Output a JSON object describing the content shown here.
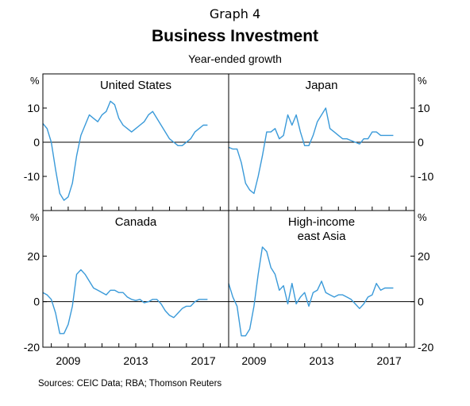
{
  "graph_label": "Graph 4",
  "title": "Business Investment",
  "subtitle": "Year-ended growth",
  "sources": "Sources:   CEIC Data; RBA; Thomson Reuters",
  "line_color": "#3a9ad9",
  "chart_data": [
    {
      "type": "line",
      "title": "United States",
      "unit": "%",
      "ylim": [
        -20,
        20
      ],
      "yticks": [
        -10,
        0,
        10
      ],
      "xlim": [
        2007.5,
        2018.5
      ],
      "xticks": [
        2009,
        2013,
        2017
      ],
      "series": [
        {
          "x": [
            2007.5,
            2007.75,
            2008,
            2008.25,
            2008.5,
            2008.75,
            2009,
            2009.25,
            2009.5,
            2009.75,
            2010,
            2010.25,
            2010.5,
            2010.75,
            2011,
            2011.25,
            2011.5,
            2011.75,
            2012,
            2012.25,
            2012.5,
            2012.75,
            2013,
            2013.25,
            2013.5,
            2013.75,
            2014,
            2014.25,
            2014.5,
            2014.75,
            2015,
            2015.25,
            2015.5,
            2015.75,
            2016,
            2016.25,
            2016.5,
            2016.75,
            2017,
            2017.25
          ],
          "values": [
            5.5,
            4,
            0,
            -8,
            -15,
            -17,
            -16,
            -12,
            -4,
            2,
            5,
            8,
            7,
            6,
            8,
            9,
            12,
            11,
            7,
            5,
            4,
            3,
            4,
            5,
            6,
            8,
            9,
            7,
            5,
            3,
            1,
            0,
            -1,
            -1,
            0,
            1,
            3,
            4,
            5,
            5
          ]
        }
      ]
    },
    {
      "type": "line",
      "title": "Japan",
      "unit": "%",
      "ylim": [
        -20,
        20
      ],
      "yticks": [
        -10,
        0,
        10
      ],
      "xlim": [
        2007.5,
        2018.5
      ],
      "xticks": [
        2009,
        2013,
        2017
      ],
      "series": [
        {
          "x": [
            2007.5,
            2007.75,
            2008,
            2008.25,
            2008.5,
            2008.75,
            2009,
            2009.25,
            2009.5,
            2009.75,
            2010,
            2010.25,
            2010.5,
            2010.75,
            2011,
            2011.25,
            2011.5,
            2011.75,
            2012,
            2012.25,
            2012.5,
            2012.75,
            2013,
            2013.25,
            2013.5,
            2013.75,
            2014,
            2014.25,
            2014.5,
            2014.75,
            2015,
            2015.25,
            2015.5,
            2015.75,
            2016,
            2016.25,
            2016.5,
            2016.75,
            2017,
            2017.25
          ],
          "values": [
            -1.5,
            -2,
            -2,
            -6,
            -12,
            -14,
            -15,
            -10,
            -4,
            3,
            3,
            4,
            1,
            2,
            8,
            5,
            8,
            3,
            -1,
            -1,
            2,
            6,
            8,
            10,
            4,
            3,
            2,
            1,
            1,
            0.5,
            0,
            -0.5,
            1,
            1,
            3,
            3,
            2,
            2,
            2,
            2
          ]
        }
      ]
    },
    {
      "type": "line",
      "title": "Canada",
      "unit": "%",
      "ylim": [
        -20,
        40
      ],
      "yticks": [
        -20,
        0,
        20
      ],
      "xlim": [
        2007.5,
        2018.5
      ],
      "xticks": [
        2009,
        2013,
        2017
      ],
      "series": [
        {
          "x": [
            2007.5,
            2007.75,
            2008,
            2008.25,
            2008.5,
            2008.75,
            2009,
            2009.25,
            2009.5,
            2009.75,
            2010,
            2010.25,
            2010.5,
            2010.75,
            2011,
            2011.25,
            2011.5,
            2011.75,
            2012,
            2012.25,
            2012.5,
            2012.75,
            2013,
            2013.25,
            2013.5,
            2013.75,
            2014,
            2014.25,
            2014.5,
            2014.75,
            2015,
            2015.25,
            2015.5,
            2015.75,
            2016,
            2016.25,
            2016.5,
            2016.75,
            2017,
            2017.25
          ],
          "values": [
            4,
            3,
            1,
            -5,
            -14,
            -14,
            -10,
            -2,
            12,
            14,
            12,
            9,
            6,
            5,
            4,
            3,
            5,
            5,
            4,
            4,
            2,
            1,
            0.5,
            1,
            -0.5,
            0,
            1,
            1,
            -1,
            -4,
            -6,
            -7,
            -5,
            -3,
            -2,
            -2,
            0,
            1,
            1,
            1
          ]
        }
      ]
    },
    {
      "type": "line",
      "title": "High-income east Asia",
      "title_lines": [
        "High-income",
        "east Asia"
      ],
      "unit": "%",
      "ylim": [
        -20,
        40
      ],
      "yticks": [
        -20,
        0,
        20
      ],
      "xlim": [
        2007.5,
        2018.5
      ],
      "xticks": [
        2009,
        2013,
        2017
      ],
      "series": [
        {
          "x": [
            2007.5,
            2007.75,
            2008,
            2008.25,
            2008.5,
            2008.75,
            2009,
            2009.25,
            2009.5,
            2009.75,
            2010,
            2010.25,
            2010.5,
            2010.75,
            2011,
            2011.25,
            2011.5,
            2011.75,
            2012,
            2012.25,
            2012.5,
            2012.75,
            2013,
            2013.25,
            2013.5,
            2013.75,
            2014,
            2014.25,
            2014.5,
            2014.75,
            2015,
            2015.25,
            2015.5,
            2015.75,
            2016,
            2016.25,
            2016.5,
            2016.75,
            2017,
            2017.25
          ],
          "values": [
            8,
            2,
            -2,
            -15,
            -15,
            -12,
            -2,
            12,
            24,
            22,
            15,
            12,
            5,
            7,
            -1,
            8,
            -1,
            2,
            4,
            -2,
            4,
            5,
            9,
            4,
            3,
            2,
            3,
            3,
            2,
            1,
            -1,
            -3,
            -1,
            2,
            3,
            8,
            5,
            6,
            6,
            6
          ]
        }
      ]
    }
  ]
}
